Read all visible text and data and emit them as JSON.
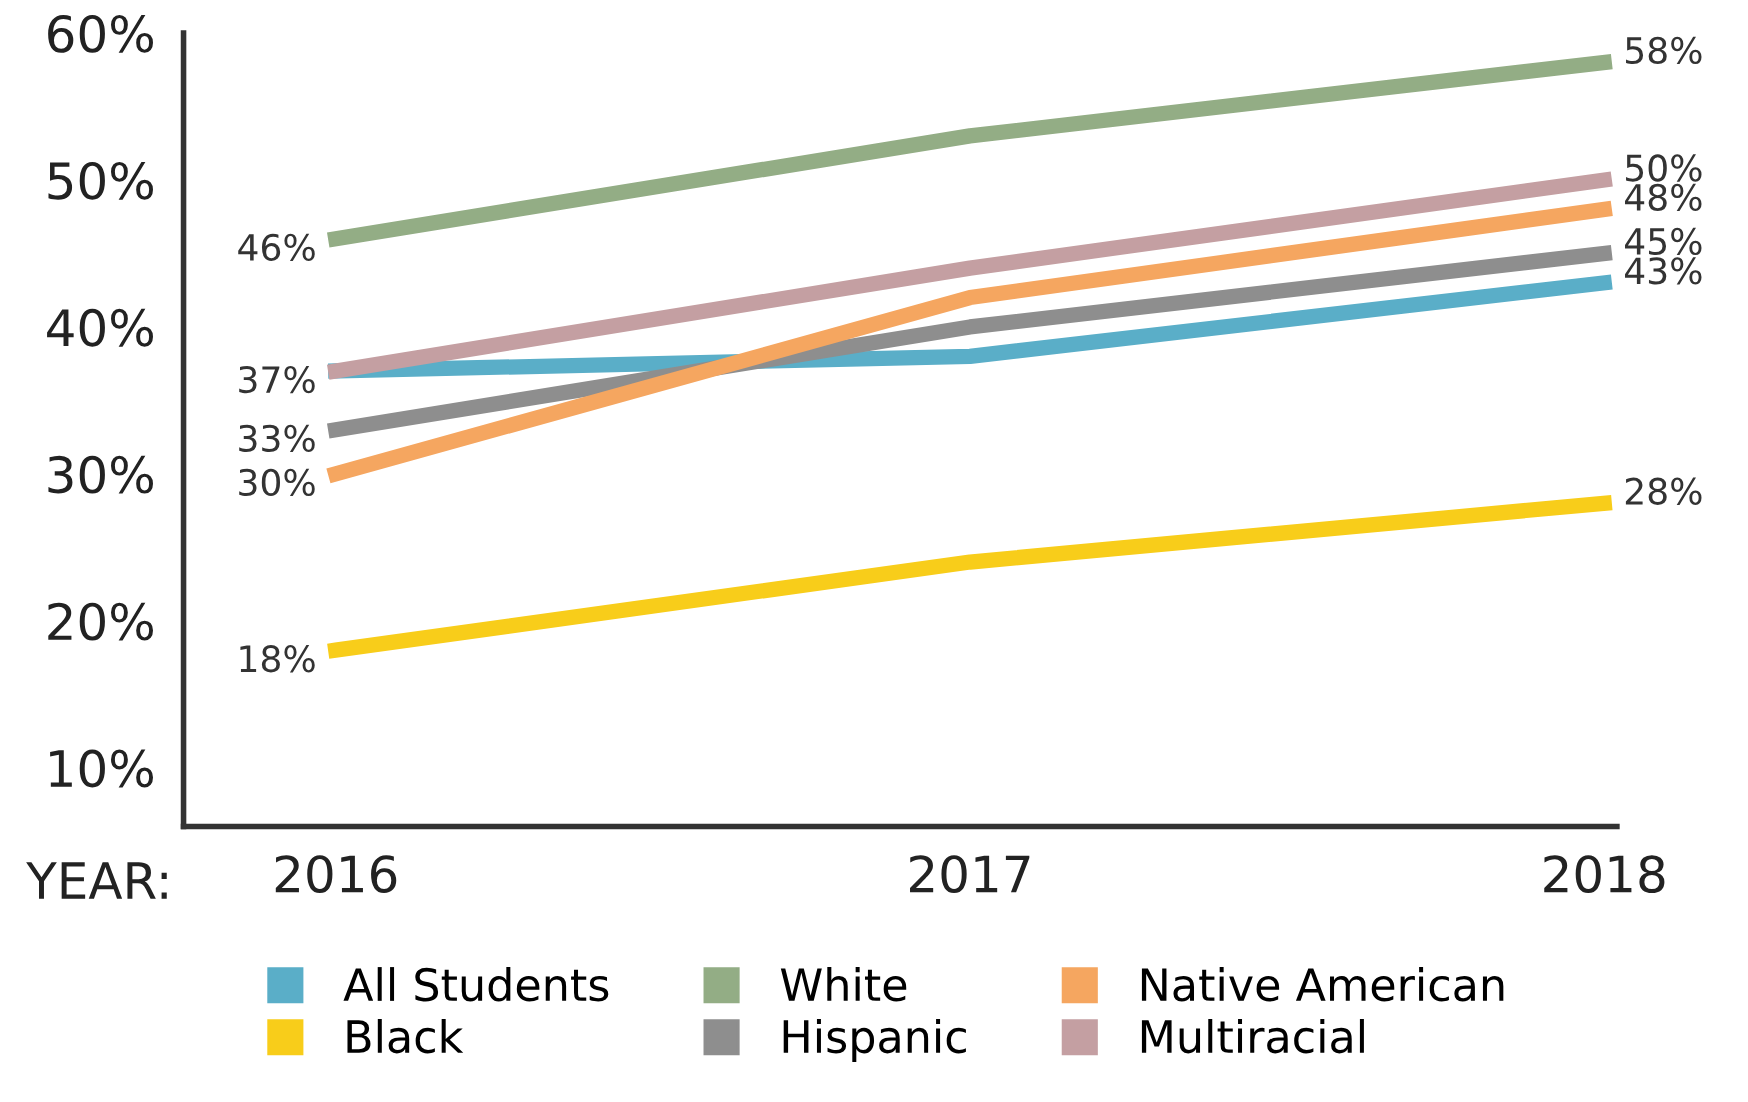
{
  "chart_data": {
    "type": "line",
    "x": [
      2016,
      2017,
      2018
    ],
    "xlim": [
      2015.76,
      2018.02
    ],
    "xticks": [
      2016,
      2017,
      2018
    ],
    "ylim": [
      6,
      60
    ],
    "yticks": [
      {
        "value": 10,
        "label": "10%"
      },
      {
        "value": 20,
        "label": "20%"
      },
      {
        "value": 30,
        "label": "30%"
      },
      {
        "value": 40,
        "label": "40%"
      },
      {
        "value": 50,
        "label": "50%"
      },
      {
        "value": 60,
        "label": "60%"
      }
    ],
    "annotations": [
      "YEAR:"
    ],
    "grid": false,
    "legend": "bottom",
    "marker": "none",
    "line_style": "solid",
    "series": [
      {
        "name": "All Students",
        "color": "#5aaec8",
        "values": [
          37,
          38,
          43
        ],
        "value_labels": [
          "37%",
          null,
          "43%"
        ]
      },
      {
        "name": "Black",
        "color": "#f8cd1a",
        "values": [
          18,
          24,
          28
        ],
        "value_labels": [
          "18%",
          null,
          "28%"
        ]
      },
      {
        "name": "White",
        "color": "#93ad85",
        "values": [
          46,
          53,
          58
        ],
        "value_labels": [
          "46%",
          null,
          "58%"
        ]
      },
      {
        "name": "Hispanic",
        "color": "#8e8e8e",
        "values": [
          33,
          40,
          45
        ],
        "value_labels": [
          "33%",
          null,
          "45%"
        ]
      },
      {
        "name": "Native American",
        "color": "#f5a660",
        "values": [
          30,
          42,
          48
        ],
        "value_labels": [
          "30%",
          null,
          "48%"
        ]
      },
      {
        "name": "Multiracial",
        "color": "#c49fa2",
        "values": [
          37,
          44,
          50
        ],
        "value_labels": [
          null,
          null,
          "50%"
        ]
      }
    ]
  }
}
